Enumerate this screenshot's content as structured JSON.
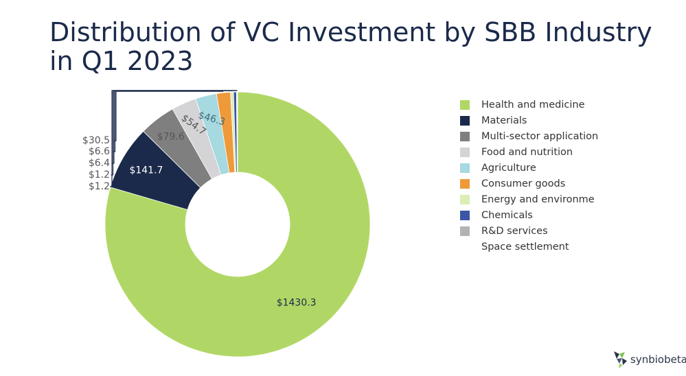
{
  "title": "Distribution of VC Investment by SBB Industry in Q1 2023",
  "brand": "synbiobeta",
  "chart_data": {
    "type": "pie",
    "donut": true,
    "legend_position": "right",
    "series": [
      {
        "name": "Health and medicine",
        "value": 1430.3,
        "label": "$1430.3",
        "color": "#b0d765"
      },
      {
        "name": "Materials",
        "value": 141.7,
        "label": "$141.7",
        "color": "#1b2a4a"
      },
      {
        "name": "Multi-sector application",
        "value": 79.6,
        "label": "$79.6",
        "color": "#7f7f7f"
      },
      {
        "name": "Food and nutrition",
        "value": 54.7,
        "label": "$54.7",
        "color": "#d4d4d6"
      },
      {
        "name": "Agriculture",
        "value": 46.3,
        "label": "$46.3",
        "color": "#a6d9e0"
      },
      {
        "name": "Consumer goods",
        "value": 30.5,
        "label": "$30.5",
        "color": "#ee9a3a"
      },
      {
        "name": "Energy and environme",
        "value": 6.6,
        "label": "$6.6",
        "color": "#dcedb6"
      },
      {
        "name": "Chemicals",
        "value": 6.4,
        "label": "$6.4",
        "color": "#3d55a5"
      },
      {
        "name": "R&D services",
        "value": 1.2,
        "label": "$1.2",
        "color": "#b3b3b3"
      },
      {
        "name": "Space settlement",
        "value": 1.2,
        "label": "$1.2",
        "color": "#ffffff"
      }
    ]
  }
}
